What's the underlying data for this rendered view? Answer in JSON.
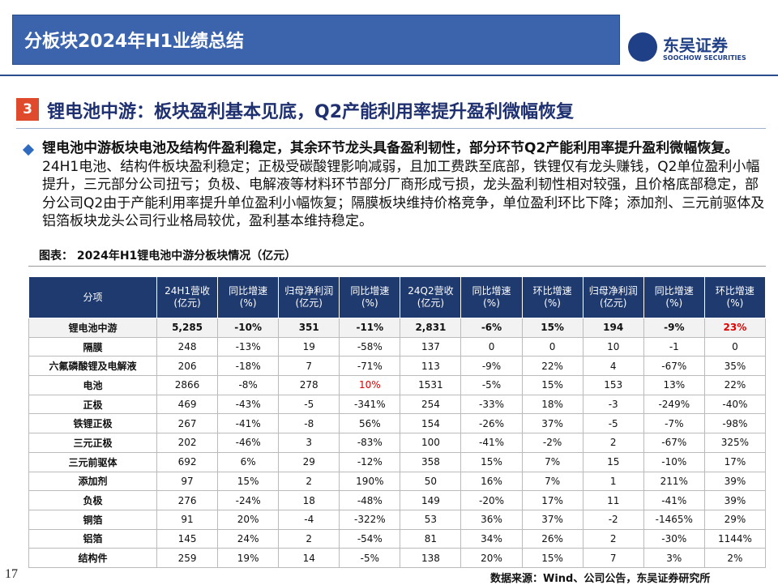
{
  "header": {
    "title": "分板块2024年H1业绩总结",
    "logo_name": "东吴证券",
    "logo_en": "SOOCHOW SECURITIES"
  },
  "section": {
    "number": "3",
    "title": "锂电池中游：板块盈利基本见底，Q2产能利用率提升盈利微幅恢复"
  },
  "paragraph": {
    "bold": "锂电池中游板块电池及结构件盈利稳定，其余环节龙头具备盈利韧性，部分环节Q2产能利用率提升盈利微幅恢复。",
    "text": "24H1电池、结构件板块盈利稳定；正极受碳酸锂影响减弱，且加工费跌至底部，铁锂仅有龙头赚钱，Q2单位盈利小幅提升，三元部分公司扭亏；负极、电解液等材料环节部分厂商形成亏损，龙头盈利韧性相对较强，且价格底部稳定，部分公司Q2由于产能利用率提升单位盈利小幅恢复；隔膜板块维持价格竞争，单位盈利环比下降；添加剂、三元前驱体及铝箔板块龙头公司行业格局较优，盈利基本维持稳定。"
  },
  "figure": {
    "caption": "图表：  2024年H1锂电池中游分板块情况（亿元）"
  },
  "table": {
    "header": [
      [
        "分项"
      ],
      [
        "24H1营收",
        "(亿元)"
      ],
      [
        "同比增速",
        "(%)"
      ],
      [
        "归母净利润",
        "(亿元)"
      ],
      [
        "同比增速",
        "(%)"
      ],
      [
        "24Q2营收",
        "(亿元)"
      ],
      [
        "同比增速",
        "(%)"
      ],
      [
        "环比增速",
        "(%)"
      ],
      [
        "归母净利润",
        "(亿元)"
      ],
      [
        "同比增速",
        "(%)"
      ],
      [
        "环比增速",
        "(%)"
      ]
    ],
    "rows": [
      [
        "锂电池中游",
        "5,285",
        "-10%",
        "351",
        "-11%",
        "2,831",
        "-6%",
        "15%",
        "194",
        "-9%",
        "23%"
      ],
      [
        "隔膜",
        "248",
        "-13%",
        "19",
        "-58%",
        "137",
        "0",
        "0",
        "10",
        "-1",
        "0"
      ],
      [
        "六氟磷酸锂及电解液",
        "206",
        "-18%",
        "7",
        "-71%",
        "113",
        "-9%",
        "22%",
        "4",
        "-67%",
        "35%"
      ],
      [
        "电池",
        "2866",
        "-8%",
        "278",
        "10%",
        "1531",
        "-5%",
        "15%",
        "153",
        "13%",
        "22%"
      ],
      [
        "正极",
        "469",
        "-43%",
        "-5",
        "-341%",
        "254",
        "-33%",
        "18%",
        "-3",
        "-249%",
        "-40%"
      ],
      [
        "铁锂正极",
        "267",
        "-41%",
        "-8",
        "56%",
        "154",
        "-26%",
        "37%",
        "-5",
        "-7%",
        "-98%"
      ],
      [
        "三元正极",
        "202",
        "-46%",
        "3",
        "-83%",
        "100",
        "-41%",
        "-2%",
        "2",
        "-67%",
        "325%"
      ],
      [
        "三元前驱体",
        "692",
        "6%",
        "29",
        "-12%",
        "358",
        "15%",
        "7%",
        "15",
        "-10%",
        "17%"
      ],
      [
        "添加剂",
        "97",
        "15%",
        "2",
        "190%",
        "50",
        "16%",
        "7%",
        "1",
        "211%",
        "39%"
      ],
      [
        "负极",
        "276",
        "-24%",
        "18",
        "-48%",
        "149",
        "-20%",
        "17%",
        "11",
        "-41%",
        "39%"
      ],
      [
        "铜箔",
        "91",
        "20%",
        "-4",
        "-322%",
        "53",
        "36%",
        "37%",
        "-2",
        "-1465%",
        "29%"
      ],
      [
        "铝箔",
        "145",
        "24%",
        "2",
        "-54%",
        "81",
        "34%",
        "26%",
        "2",
        "-30%",
        "1144%"
      ],
      [
        "结构件",
        "259",
        "19%",
        "14",
        "-5%",
        "138",
        "20%",
        "15%",
        "7",
        "3%",
        "2%"
      ]
    ]
  },
  "footer": {
    "page": "17",
    "source": "数据来源：Wind、公司公告，东吴证券研究所"
  }
}
